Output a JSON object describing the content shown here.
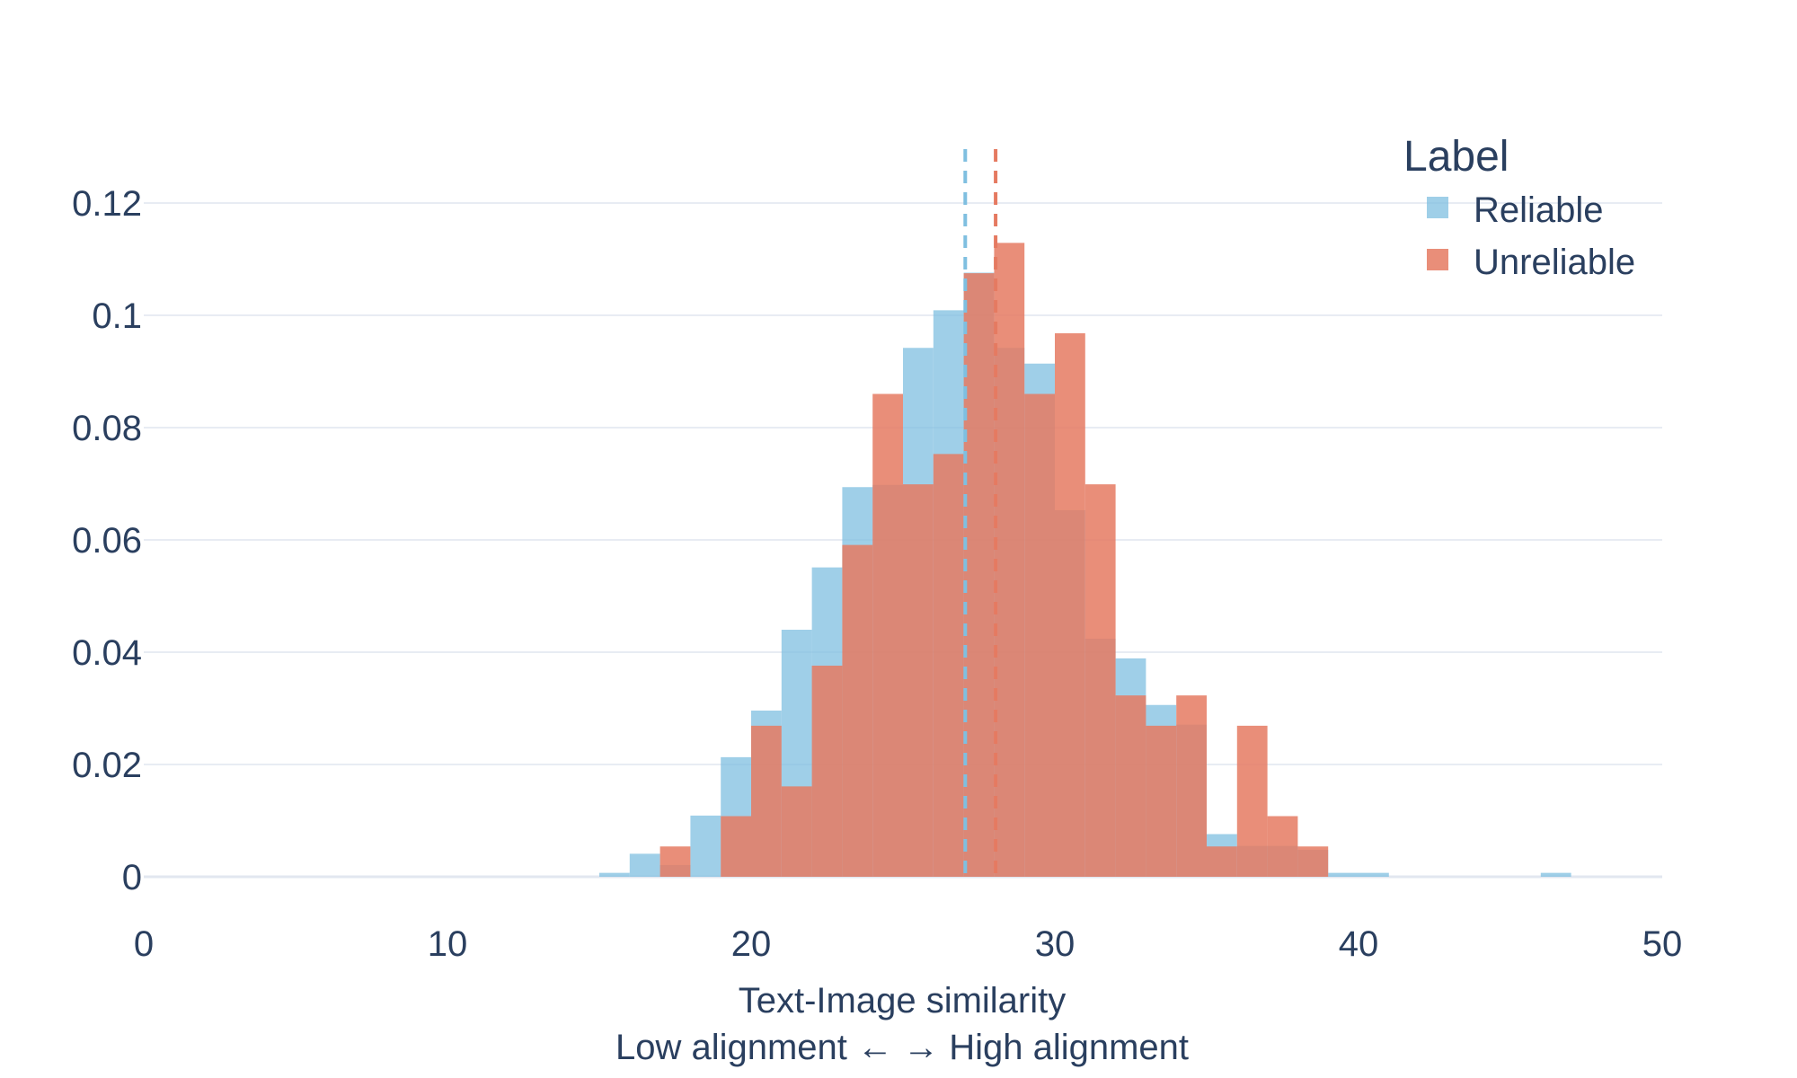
{
  "chart_data": {
    "type": "histogram",
    "xlabel_lines": [
      "Text-Image similarity",
      "Low alignment ←   → High alignment"
    ],
    "ylabel": "",
    "xlim": [
      0,
      50
    ],
    "ylim": [
      0,
      0.13
    ],
    "x_ticks": [
      0,
      10,
      20,
      30,
      40,
      50
    ],
    "x_tick_labels": [
      "0",
      "10",
      "20",
      "30",
      "40",
      "50"
    ],
    "y_ticks": [
      0,
      0.02,
      0.04,
      0.06,
      0.08,
      0.1,
      0.12
    ],
    "y_tick_labels": [
      "0",
      "0.02",
      "0.04",
      "0.06",
      "0.08",
      "0.1",
      "0.12"
    ],
    "grid": true,
    "legend_title": "Label",
    "legend_position": "top-right",
    "bin_width": 1,
    "series": [
      {
        "name": "Reliable",
        "color": "#7fbfe0",
        "opacity": 0.75,
        "mean": 27.05,
        "bins": [
          {
            "x0": 15,
            "y": 0.0007
          },
          {
            "x0": 16,
            "y": 0.0041
          },
          {
            "x0": 17,
            "y": 0.0021
          },
          {
            "x0": 18,
            "y": 0.0109
          },
          {
            "x0": 19,
            "y": 0.0213
          },
          {
            "x0": 20,
            "y": 0.0296
          },
          {
            "x0": 21,
            "y": 0.044
          },
          {
            "x0": 22,
            "y": 0.0551
          },
          {
            "x0": 23,
            "y": 0.0694
          },
          {
            "x0": 24,
            "y": 0.0698
          },
          {
            "x0": 25,
            "y": 0.0942
          },
          {
            "x0": 26,
            "y": 0.1009
          },
          {
            "x0": 27,
            "y": 0.1076
          },
          {
            "x0": 28,
            "y": 0.0942
          },
          {
            "x0": 29,
            "y": 0.0914
          },
          {
            "x0": 30,
            "y": 0.0653
          },
          {
            "x0": 31,
            "y": 0.0424
          },
          {
            "x0": 32,
            "y": 0.0389
          },
          {
            "x0": 33,
            "y": 0.0306
          },
          {
            "x0": 34,
            "y": 0.0271
          },
          {
            "x0": 35,
            "y": 0.0076
          },
          {
            "x0": 36,
            "y": 0.0055
          },
          {
            "x0": 37,
            "y": 0.0055
          },
          {
            "x0": 38,
            "y": 0.0048
          },
          {
            "x0": 39,
            "y": 0.0007
          },
          {
            "x0": 40,
            "y": 0.0007
          },
          {
            "x0": 46,
            "y": 0.0007
          }
        ]
      },
      {
        "name": "Unreliable",
        "color": "#e57a61",
        "opacity": 0.85,
        "mean": 28.05,
        "bins": [
          {
            "x0": 17,
            "y": 0.0054
          },
          {
            "x0": 19,
            "y": 0.0108
          },
          {
            "x0": 20,
            "y": 0.0269
          },
          {
            "x0": 21,
            "y": 0.0161
          },
          {
            "x0": 22,
            "y": 0.0376
          },
          {
            "x0": 23,
            "y": 0.0591
          },
          {
            "x0": 24,
            "y": 0.086
          },
          {
            "x0": 25,
            "y": 0.0699
          },
          {
            "x0": 26,
            "y": 0.0753
          },
          {
            "x0": 27,
            "y": 0.1075
          },
          {
            "x0": 28,
            "y": 0.1129
          },
          {
            "x0": 29,
            "y": 0.086
          },
          {
            "x0": 30,
            "y": 0.0968
          },
          {
            "x0": 31,
            "y": 0.0699
          },
          {
            "x0": 32,
            "y": 0.0323
          },
          {
            "x0": 33,
            "y": 0.0269
          },
          {
            "x0": 34,
            "y": 0.0323
          },
          {
            "x0": 35,
            "y": 0.0054
          },
          {
            "x0": 36,
            "y": 0.0269
          },
          {
            "x0": 37,
            "y": 0.0108
          },
          {
            "x0": 38,
            "y": 0.0054
          }
        ]
      }
    ]
  }
}
